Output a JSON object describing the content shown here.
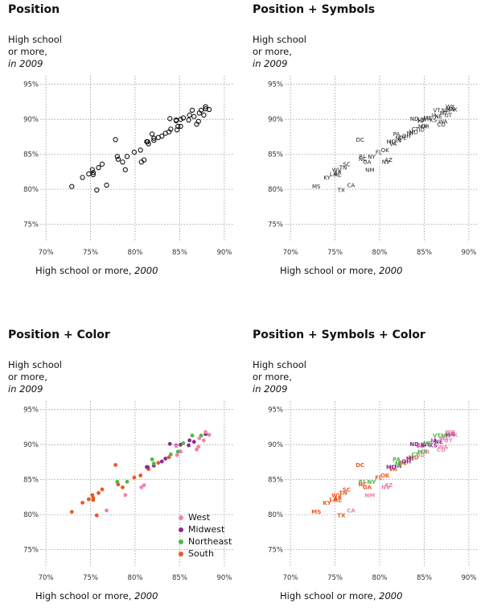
{
  "panels": [
    {
      "title": "Position",
      "mode": "position"
    },
    {
      "title": "Position + Symbols",
      "mode": "symbols"
    },
    {
      "title": "Position + Color",
      "mode": "color"
    },
    {
      "title": "Position + Symbols + Color",
      "mode": "symbols-color"
    }
  ],
  "axis": {
    "y_label_line1": "High school",
    "y_label_line2": "or more,",
    "y_label_line3": "in 2009",
    "x_label_main": "High school or more, ",
    "x_label_year": "2000"
  },
  "legend": [
    {
      "key": "West",
      "label": "West",
      "color": "#ee82b4"
    },
    {
      "key": "Midwest",
      "label": "Midwest",
      "color": "#8e2a8e"
    },
    {
      "key": "Northeast",
      "label": "Northeast",
      "color": "#4cb84c"
    },
    {
      "key": "South",
      "label": "South",
      "color": "#ea5a24"
    }
  ],
  "chart_data": {
    "type": "scatter",
    "xlabel": "High school or more, 2000",
    "ylabel": "High school or more, in 2009",
    "xlim": [
      69,
      91
    ],
    "ylim": [
      73,
      96
    ],
    "xticks": [
      70,
      75,
      80,
      85,
      90
    ],
    "yticks": [
      75,
      80,
      85,
      90,
      95
    ],
    "tick_suffix": "%",
    "grid": true,
    "points": [
      {
        "s": "MS",
        "r": "South",
        "x": 72.9,
        "y": 80.4
      },
      {
        "s": "KY",
        "r": "South",
        "x": 74.1,
        "y": 81.7
      },
      {
        "s": "AL",
        "r": "South",
        "x": 75.3,
        "y": 82.1
      },
      {
        "s": "WV",
        "r": "South",
        "x": 75.2,
        "y": 82.8
      },
      {
        "s": "LA",
        "r": "South",
        "x": 74.8,
        "y": 82.2
      },
      {
        "s": "AR",
        "r": "South",
        "x": 75.3,
        "y": 82.4
      },
      {
        "s": "TN",
        "r": "South",
        "x": 75.9,
        "y": 83.1
      },
      {
        "s": "SC",
        "r": "South",
        "x": 76.3,
        "y": 83.6
      },
      {
        "s": "TX",
        "r": "South",
        "x": 75.7,
        "y": 79.9
      },
      {
        "s": "CA",
        "r": "West",
        "x": 76.8,
        "y": 80.6
      },
      {
        "s": "DC",
        "r": "South",
        "x": 77.8,
        "y": 87.1
      },
      {
        "s": "RI",
        "r": "Northeast",
        "x": 78.0,
        "y": 84.7
      },
      {
        "s": "NC",
        "r": "South",
        "x": 78.1,
        "y": 84.3
      },
      {
        "s": "NY",
        "r": "Northeast",
        "x": 79.1,
        "y": 84.7
      },
      {
        "s": "GA",
        "r": "South",
        "x": 78.6,
        "y": 83.9
      },
      {
        "s": "NM",
        "r": "West",
        "x": 78.9,
        "y": 82.8
      },
      {
        "s": "FL",
        "r": "South",
        "x": 79.9,
        "y": 85.3
      },
      {
        "s": "OK",
        "r": "South",
        "x": 80.6,
        "y": 85.6
      },
      {
        "s": "NV",
        "r": "West",
        "x": 80.7,
        "y": 83.9
      },
      {
        "s": "AZ",
        "r": "West",
        "x": 81.0,
        "y": 84.2
      },
      {
        "s": "MO",
        "r": "Midwest",
        "x": 81.3,
        "y": 86.8
      },
      {
        "s": "IN",
        "r": "Midwest",
        "x": 82.1,
        "y": 87.0
      },
      {
        "s": "VA",
        "r": "South",
        "x": 81.5,
        "y": 86.5
      },
      {
        "s": "PA",
        "r": "Northeast",
        "x": 81.9,
        "y": 87.9
      },
      {
        "s": "DE",
        "r": "South",
        "x": 82.6,
        "y": 87.4
      },
      {
        "s": "OH",
        "r": "Midwest",
        "x": 83.0,
        "y": 87.6
      },
      {
        "s": "MD",
        "r": "South",
        "x": 83.8,
        "y": 88.2
      },
      {
        "s": "NJ",
        "r": "Northeast",
        "x": 82.1,
        "y": 87.3
      },
      {
        "s": "MI",
        "r": "Midwest",
        "x": 83.4,
        "y": 88.0
      },
      {
        "s": "ID",
        "r": "West",
        "x": 84.7,
        "y": 88.5
      },
      {
        "s": "IL",
        "r": "Midwest",
        "x": 81.4,
        "y": 86.8
      },
      {
        "s": "OR",
        "r": "West",
        "x": 85.1,
        "y": 89.0
      },
      {
        "s": "ND",
        "r": "Midwest",
        "x": 83.9,
        "y": 90.1
      },
      {
        "s": "SD",
        "r": "Midwest",
        "x": 84.6,
        "y": 89.9
      },
      {
        "s": "HI",
        "r": "West",
        "x": 84.6,
        "y": 89.8
      },
      {
        "s": "CT",
        "r": "Northeast",
        "x": 84.0,
        "y": 88.6
      },
      {
        "s": "MA",
        "r": "Northeast",
        "x": 84.8,
        "y": 89.0
      },
      {
        "s": "KS",
        "r": "Midwest",
        "x": 86.0,
        "y": 89.9
      },
      {
        "s": "IA",
        "r": "Midwest",
        "x": 86.1,
        "y": 90.6
      },
      {
        "s": "NE",
        "r": "Midwest",
        "x": 86.6,
        "y": 90.4
      },
      {
        "s": "WI",
        "r": "Midwest",
        "x": 85.1,
        "y": 90.0
      },
      {
        "s": "ME",
        "r": "Northeast",
        "x": 85.4,
        "y": 90.2
      },
      {
        "s": "WA",
        "r": "West",
        "x": 87.1,
        "y": 89.7
      },
      {
        "s": "CO",
        "r": "West",
        "x": 86.9,
        "y": 89.3
      },
      {
        "s": "UT",
        "r": "West",
        "x": 87.7,
        "y": 90.6
      },
      {
        "s": "VT",
        "r": "Northeast",
        "x": 86.4,
        "y": 91.3
      },
      {
        "s": "NH",
        "r": "Northeast",
        "x": 87.4,
        "y": 91.3
      },
      {
        "s": "MN",
        "r": "Midwest",
        "x": 87.9,
        "y": 91.5
      },
      {
        "s": "MT",
        "r": "West",
        "x": 87.2,
        "y": 90.9
      },
      {
        "s": "AK",
        "r": "West",
        "x": 88.3,
        "y": 91.4
      },
      {
        "s": "WY",
        "r": "West",
        "x": 87.9,
        "y": 91.8
      }
    ]
  }
}
